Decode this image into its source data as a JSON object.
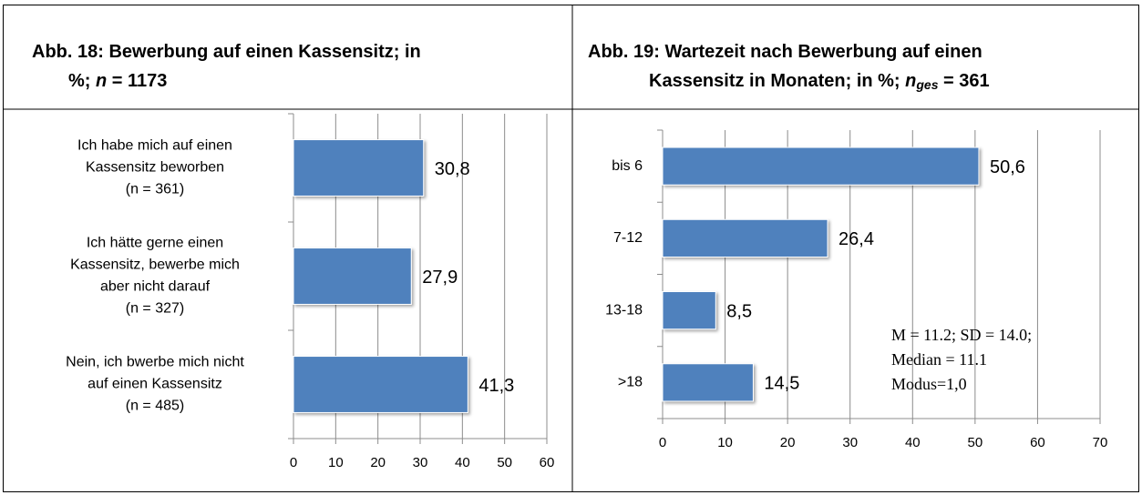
{
  "chart_data": [
    {
      "type": "bar",
      "orientation": "horizontal",
      "title": [
        [
          "Abb. 18: Bewerbung auf einen Kassensitz;  in"
        ],
        [
          "%; ",
          "n",
          " = 1173"
        ]
      ],
      "categories": [
        [
          "Ich habe mich auf einen",
          "Kassensitz beworben",
          "(n = 361)"
        ],
        [
          "Ich hätte gerne einen",
          "Kassensitz, bewerbe mich",
          "aber nicht darauf",
          "(n = 327)"
        ],
        [
          "Nein, ich bwerbe mich nicht",
          "auf einen Kassensitz",
          "(n = 485)"
        ]
      ],
      "values": [
        30.8,
        27.9,
        41.3
      ],
      "value_labels": [
        "30,8",
        "27,9",
        "41,3"
      ],
      "color": "#4f81bd",
      "xlim": [
        0,
        60
      ],
      "xticks": [
        0,
        10,
        20,
        30,
        40,
        50,
        60
      ],
      "grid": true
    },
    {
      "type": "bar",
      "orientation": "horizontal",
      "title": [
        [
          "Abb. 19: Wartezeit nach Bewerbung auf einen"
        ],
        [
          "Kassensitz in Monaten; in %; ",
          "n",
          "ges",
          " = 361"
        ]
      ],
      "categories": [
        "bis 6",
        "7-12",
        "13-18",
        ">18"
      ],
      "values": [
        50.6,
        26.4,
        8.5,
        14.5
      ],
      "value_labels": [
        "50,6",
        "26,4",
        "8,5",
        "14,5"
      ],
      "color": "#4f81bd",
      "xlim": [
        0,
        70
      ],
      "xticks": [
        0,
        10,
        20,
        30,
        40,
        50,
        60,
        70
      ],
      "grid": true,
      "annotation": [
        "M = 11.2; SD = 14.0;",
        "Median = 11.1",
        "Modus=1,0"
      ]
    }
  ]
}
